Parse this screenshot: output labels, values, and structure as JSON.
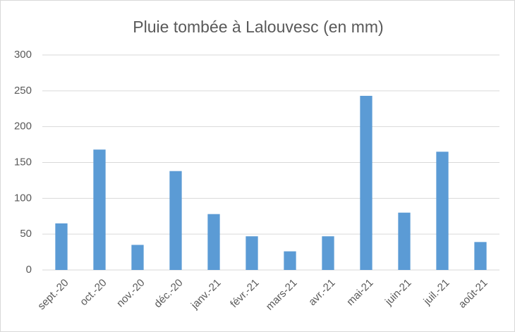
{
  "chart_data": {
    "type": "bar",
    "title": "Pluie tombée à Lalouvesc (en mm)",
    "categories": [
      "sept.-20",
      "oct.-20",
      "nov.-20",
      "déc.-20",
      "janv.-21",
      "févr.-21",
      "mars-21",
      "avr.-21",
      "mai-21",
      "juin-21",
      "juil.-21",
      "août-21"
    ],
    "values": [
      65,
      168,
      35,
      138,
      78,
      47,
      26,
      47,
      243,
      80,
      165,
      39
    ],
    "color": "#5b9bd5",
    "ylim": [
      0,
      300
    ],
    "yticks": [
      0,
      50,
      100,
      150,
      200,
      250,
      300
    ],
    "grid": true
  }
}
